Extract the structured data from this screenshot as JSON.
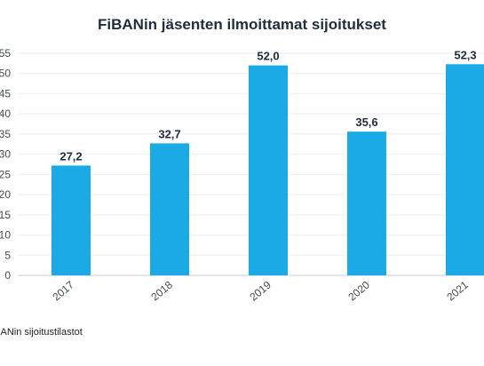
{
  "chart_data": {
    "type": "bar",
    "title": "FiBANin jäsenten ilmoittamat sijoitukset",
    "categories": [
      "2017",
      "2018",
      "2019",
      "2020",
      "2021"
    ],
    "values": [
      27.2,
      32.7,
      52.0,
      35.6,
      52.3
    ],
    "data_labels": [
      "27,2",
      "32,7",
      "52,0",
      "35,6",
      "52,3"
    ],
    "yticks": [
      0,
      5,
      10,
      15,
      20,
      25,
      30,
      35,
      40,
      45,
      50,
      55
    ],
    "ylim": [
      0,
      55
    ],
    "xlabel": "",
    "ylabel": "",
    "grid": true,
    "bar_color": "#1aabe6",
    "source": "FiBANin sijoitustilastot"
  }
}
